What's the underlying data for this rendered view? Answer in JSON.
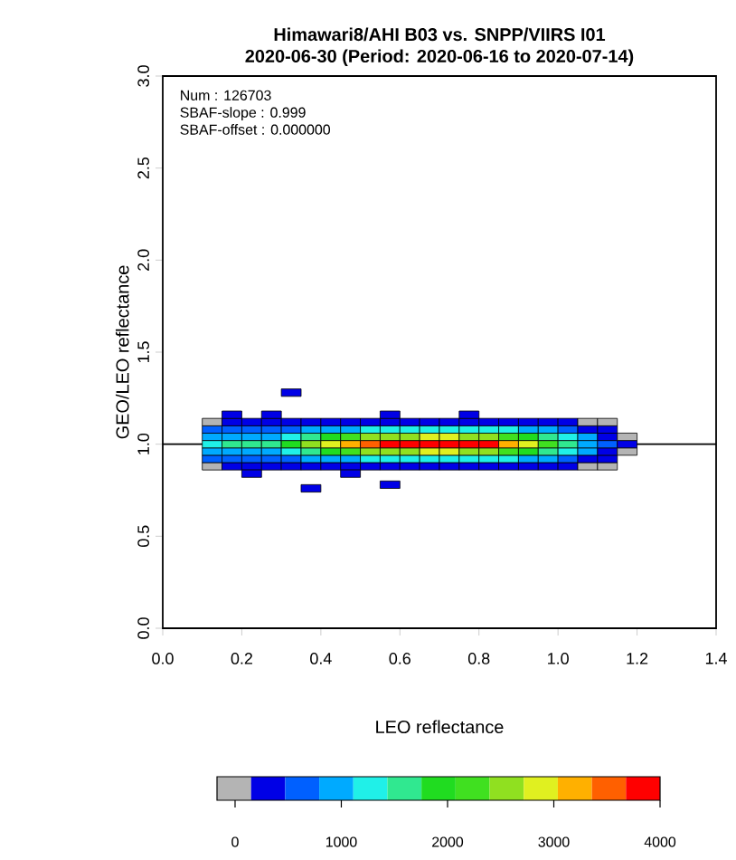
{
  "chart_data": {
    "type": "scatter",
    "title": "Himawari8/AHI B03 vs. SNPP/VIIRS I01",
    "subtitle": "2020-06-30 (Period: 2020-06-16 to 2020-07-14)",
    "xlabel": "LEO reflectance",
    "ylabel": "GEO/LEO reflectance",
    "annotations": [
      "Num   : 126703",
      "SBAF-slope  : 0.999",
      "SBAF-offset : 0.000000"
    ],
    "xlim": [
      0,
      1.4
    ],
    "ylim": [
      0,
      3
    ],
    "xticks": [
      {
        "value": 0,
        "label": "0.0"
      },
      {
        "value": 0.2,
        "label": "0.2"
      },
      {
        "value": 0.4,
        "label": "0.4"
      },
      {
        "value": 0.6,
        "label": "0.6"
      },
      {
        "value": 0.8,
        "label": "0.8"
      },
      {
        "value": 1.0,
        "label": "1.0"
      },
      {
        "value": 1.2,
        "label": "1.2"
      },
      {
        "value": 1.4,
        "label": "1.4"
      }
    ],
    "yticks": [
      {
        "value": 0,
        "label": "0.0"
      },
      {
        "value": 0.5,
        "label": "0.5"
      },
      {
        "value": 1.0,
        "label": "1.0"
      },
      {
        "value": 1.5,
        "label": "1.5"
      },
      {
        "value": 2.0,
        "label": "2.0"
      },
      {
        "value": 2.5,
        "label": "2.5"
      },
      {
        "value": 3.0,
        "label": "3.0"
      }
    ],
    "marker": "square",
    "ref_lines": [
      {
        "axis": "y",
        "value": 1.0
      }
    ],
    "clim": [
      -170,
      4000
    ],
    "cticks": [
      0,
      1000,
      2000,
      3000,
      4000
    ],
    "x": [
      0.125,
      0.125,
      0.125,
      0.125,
      0.125,
      0.125,
      0.125,
      0.175,
      0.175,
      0.175,
      0.175,
      0.175,
      0.175,
      0.175,
      0.225,
      0.225,
      0.225,
      0.225,
      0.225,
      0.225,
      0.225,
      0.275,
      0.275,
      0.275,
      0.275,
      0.275,
      0.275,
      0.275,
      0.325,
      0.325,
      0.325,
      0.325,
      0.325,
      0.325,
      0.325,
      0.375,
      0.375,
      0.375,
      0.375,
      0.375,
      0.375,
      0.375,
      0.425,
      0.425,
      0.425,
      0.425,
      0.425,
      0.425,
      0.425,
      0.475,
      0.475,
      0.475,
      0.475,
      0.475,
      0.475,
      0.475,
      0.525,
      0.525,
      0.525,
      0.525,
      0.525,
      0.525,
      0.525,
      0.575,
      0.575,
      0.575,
      0.575,
      0.575,
      0.575,
      0.575,
      0.625,
      0.625,
      0.625,
      0.625,
      0.625,
      0.625,
      0.625,
      0.675,
      0.675,
      0.675,
      0.675,
      0.675,
      0.675,
      0.675,
      0.725,
      0.725,
      0.725,
      0.725,
      0.725,
      0.725,
      0.725,
      0.775,
      0.775,
      0.775,
      0.775,
      0.775,
      0.775,
      0.775,
      0.825,
      0.825,
      0.825,
      0.825,
      0.825,
      0.825,
      0.825,
      0.875,
      0.875,
      0.875,
      0.875,
      0.875,
      0.875,
      0.875,
      0.925,
      0.925,
      0.925,
      0.925,
      0.925,
      0.925,
      0.925,
      0.975,
      0.975,
      0.975,
      0.975,
      0.975,
      0.975,
      0.975,
      1.025,
      1.025,
      1.025,
      1.025,
      1.025,
      1.025,
      1.025,
      1.075,
      1.075,
      1.075,
      1.075,
      1.075,
      1.075,
      1.075,
      1.125,
      1.125,
      1.125,
      1.125,
      1.125,
      1.125,
      1.125,
      1.175,
      1.175,
      1.175,
      0.325,
      0.375,
      0.575,
      0.175,
      0.275,
      0.575,
      0.775,
      0.225,
      0.475
    ],
    "values": [
      0.88,
      0.92,
      0.96,
      1.0,
      1.04,
      1.08,
      1.12,
      0.88,
      0.92,
      0.96,
      1.0,
      1.04,
      1.08,
      1.12,
      0.88,
      0.92,
      0.96,
      1.0,
      1.04,
      1.08,
      1.12,
      0.88,
      0.92,
      0.96,
      1.0,
      1.04,
      1.08,
      1.12,
      0.88,
      0.92,
      0.96,
      1.0,
      1.04,
      1.08,
      1.12,
      0.88,
      0.92,
      0.96,
      1.0,
      1.04,
      1.08,
      1.12,
      0.88,
      0.92,
      0.96,
      1.0,
      1.04,
      1.08,
      1.12,
      0.88,
      0.92,
      0.96,
      1.0,
      1.04,
      1.08,
      1.12,
      0.88,
      0.92,
      0.96,
      1.0,
      1.04,
      1.08,
      1.12,
      0.88,
      0.92,
      0.96,
      1.0,
      1.04,
      1.08,
      1.12,
      0.88,
      0.92,
      0.96,
      1.0,
      1.04,
      1.08,
      1.12,
      0.88,
      0.92,
      0.96,
      1.0,
      1.04,
      1.08,
      1.12,
      0.88,
      0.92,
      0.96,
      1.0,
      1.04,
      1.08,
      1.12,
      0.88,
      0.92,
      0.96,
      1.0,
      1.04,
      1.08,
      1.12,
      0.88,
      0.92,
      0.96,
      1.0,
      1.04,
      1.08,
      1.12,
      0.88,
      0.92,
      0.96,
      1.0,
      1.04,
      1.08,
      1.12,
      0.88,
      0.92,
      0.96,
      1.0,
      1.04,
      1.08,
      1.12,
      0.88,
      0.92,
      0.96,
      1.0,
      1.04,
      1.08,
      1.12,
      0.88,
      0.92,
      0.96,
      1.0,
      1.04,
      1.08,
      1.12,
      0.88,
      0.92,
      0.96,
      1.0,
      1.04,
      1.08,
      1.12,
      0.88,
      0.92,
      0.96,
      1.0,
      1.04,
      1.08,
      1.12,
      0.96,
      1.0,
      1.04,
      1.28,
      0.76,
      0.78,
      1.16,
      1.16,
      1.16,
      1.16,
      0.84,
      0.84
    ],
    "cvalues": [
      100,
      500,
      1000,
      1400,
      1000,
      500,
      100,
      200,
      500,
      1100,
      1500,
      1100,
      500,
      200,
      200,
      500,
      1100,
      1500,
      1100,
      500,
      200,
      200,
      600,
      1100,
      1600,
      1100,
      600,
      200,
      200,
      700,
      1300,
      1900,
      1300,
      700,
      200,
      200,
      800,
      1700,
      2400,
      1700,
      800,
      200,
      300,
      1000,
      2000,
      2800,
      2000,
      1000,
      300,
      300,
      1100,
      2200,
      3100,
      2200,
      1100,
      300,
      300,
      1200,
      2400,
      3400,
      2400,
      1200,
      300,
      400,
      1300,
      2600,
      3700,
      2600,
      1300,
      400,
      400,
      1400,
      2700,
      3900,
      2700,
      1400,
      400,
      400,
      1400,
      2800,
      4000,
      2800,
      1400,
      400,
      400,
      1400,
      2800,
      4000,
      2800,
      1400,
      400,
      400,
      1400,
      2700,
      3900,
      2700,
      1400,
      400,
      400,
      1300,
      2600,
      3700,
      2600,
      1300,
      400,
      300,
      1200,
      2300,
      3300,
      2300,
      1200,
      300,
      300,
      1000,
      2000,
      2800,
      2000,
      1000,
      300,
      200,
      800,
      1600,
      2300,
      1600,
      800,
      200,
      200,
      600,
      1200,
      1700,
      1200,
      600,
      200,
      100,
      400,
      800,
      1100,
      800,
      400,
      100,
      100,
      200,
      400,
      600,
      400,
      200,
      100,
      100,
      200,
      100,
      200,
      200,
      200,
      200,
      200,
      200,
      200,
      200,
      200
    ]
  }
}
